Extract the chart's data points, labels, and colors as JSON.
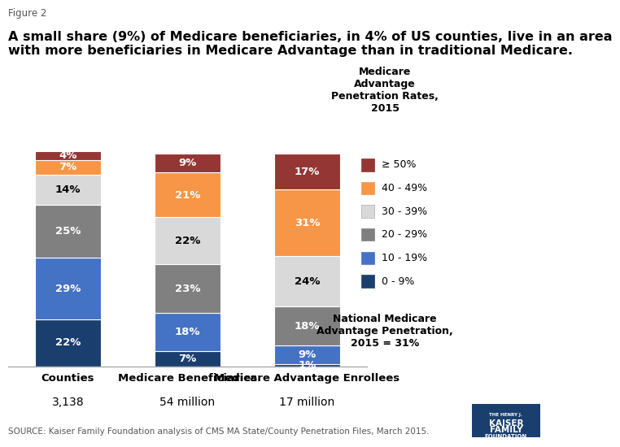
{
  "figure_label": "Figure 2",
  "title_line1": "A small share (9%) of Medicare beneficiaries, in 4% of US counties, live in an area",
  "title_line2": "with more beneficiaries in Medicare Advantage than in traditional Medicare.",
  "categories": [
    "Counties",
    "Medicare Beneficiaries",
    "Medicare Advantage Enrollees"
  ],
  "subtitles": [
    "3,138",
    "54 million",
    "17 million"
  ],
  "segments": [
    {
      "label": "0 - 9%",
      "color": "#1a3f6f",
      "values": [
        22,
        7,
        1
      ],
      "text_color": "#ffffff"
    },
    {
      "label": "10 - 19%",
      "color": "#4472c4",
      "values": [
        29,
        18,
        9
      ],
      "text_color": "#ffffff"
    },
    {
      "label": "20 - 29%",
      "color": "#808080",
      "values": [
        25,
        23,
        18
      ],
      "text_color": "#ffffff"
    },
    {
      "label": "30 - 39%",
      "color": "#d9d9d9",
      "values": [
        14,
        22,
        24
      ],
      "text_color": "#000000"
    },
    {
      "label": "40 - 49%",
      "color": "#f79646",
      "values": [
        7,
        21,
        31
      ],
      "text_color": "#ffffff"
    },
    {
      "label": "≥ 50%",
      "color": "#943634",
      "values": [
        4,
        9,
        17
      ],
      "text_color": "#ffffff"
    }
  ],
  "legend_title": "Medicare\nAdvantage\nPenetration Rates,\n2015",
  "legend_note": "National Medicare\nAdvantage Penetration,\n2015 = 31%",
  "source_text": "SOURCE: Kaiser Family Foundation analysis of CMS MA State/County Penetration Files, March 2015.",
  "bar_width": 0.55,
  "background_color": "#ffffff"
}
